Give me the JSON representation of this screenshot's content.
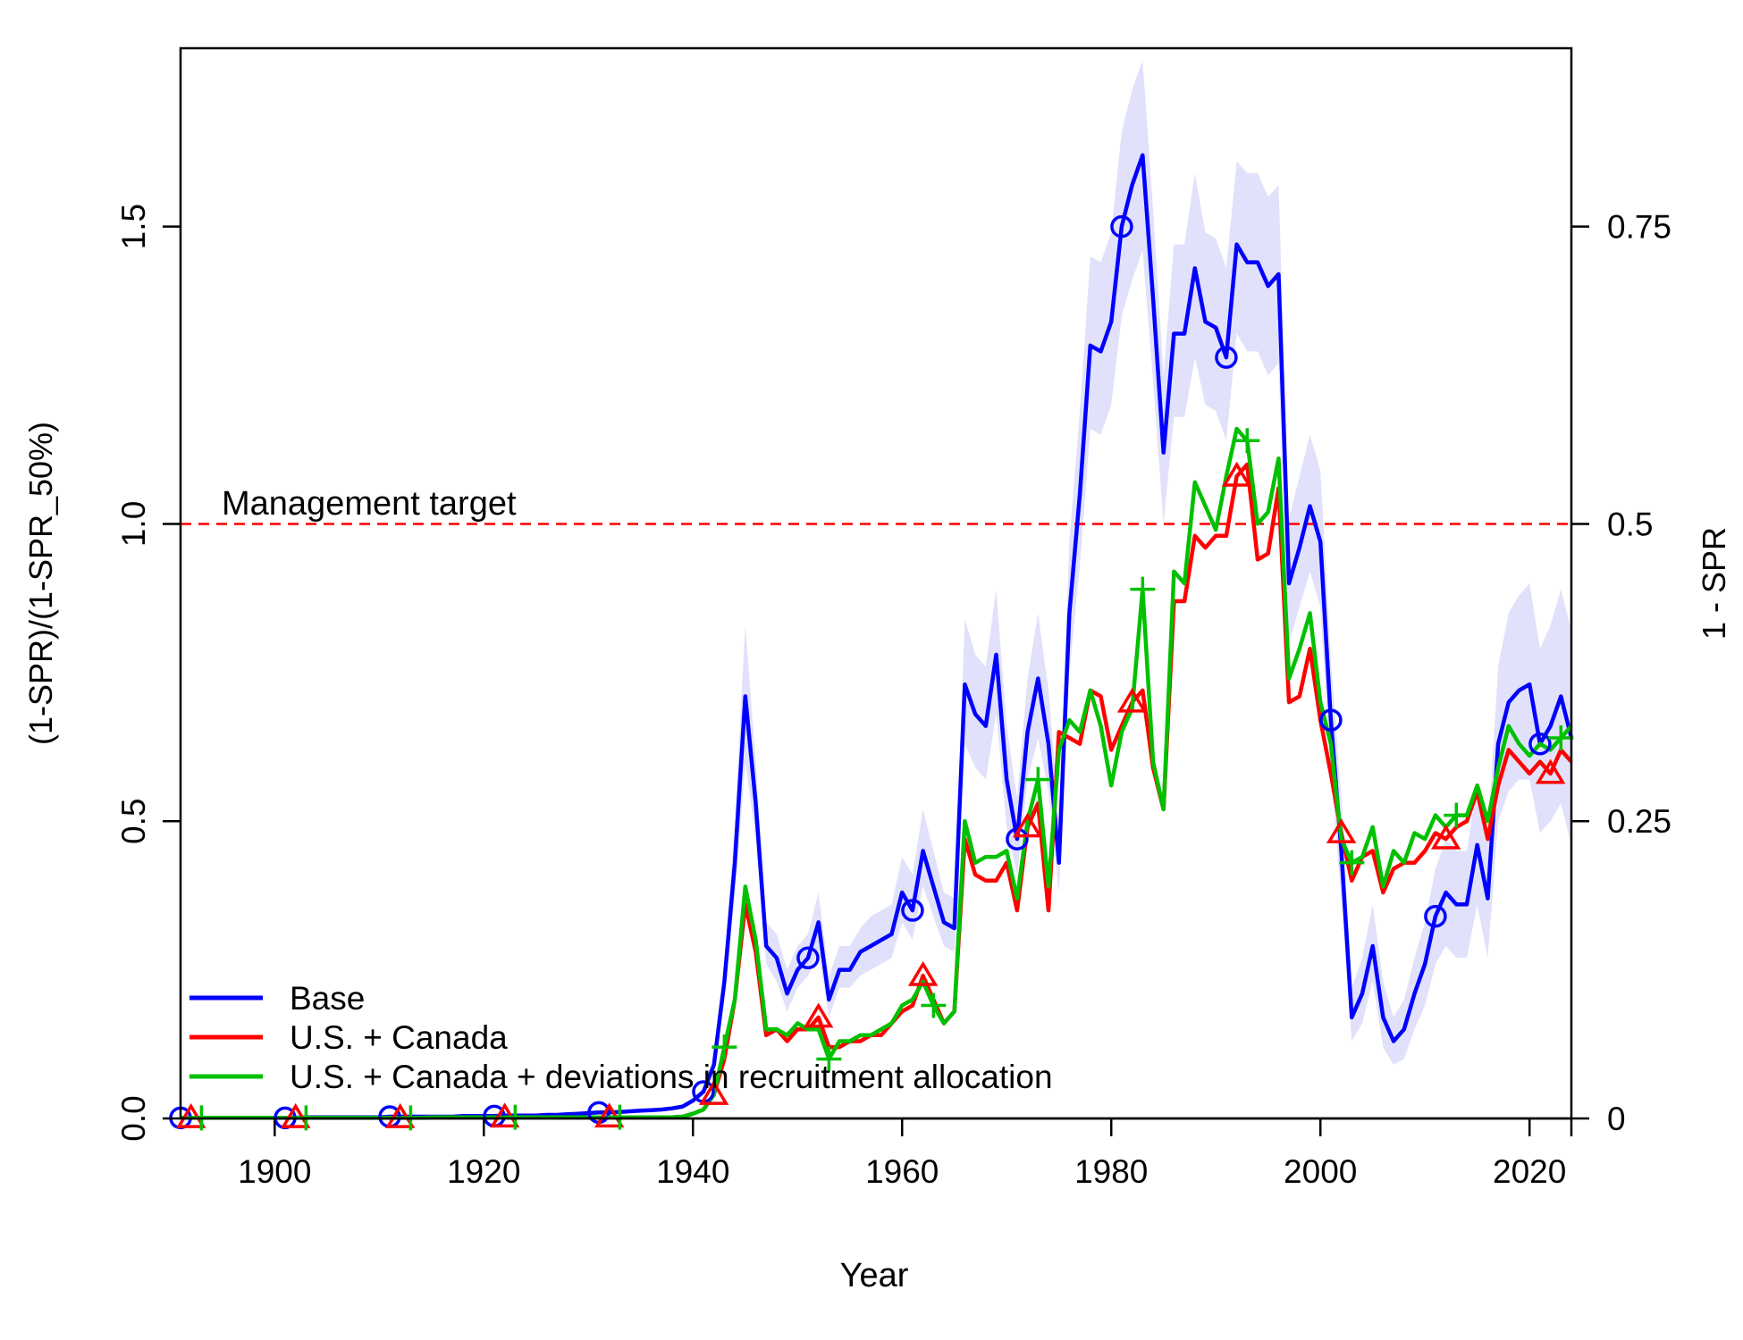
{
  "chart_data": {
    "type": "line",
    "xlabel": "Year",
    "ylabel": "(1-SPR)/(1-SPR_50%)",
    "ylabel_right": "1 - SPR",
    "xlim": [
      1891,
      2024
    ],
    "ylim": [
      0,
      1.8
    ],
    "x_ticks": [
      "1900",
      "1920",
      "1940",
      "1960",
      "1980",
      "2000",
      "2020"
    ],
    "y_ticks": [
      "0.0",
      "0.5",
      "1.0",
      "1.5"
    ],
    "y_ticks_right": [
      "0",
      "0.25",
      "0.5",
      "0.75"
    ],
    "reference_line": {
      "y": 1.0,
      "label": "Management target",
      "color": "#ff0000",
      "style": "dashed"
    },
    "legend_position": "bottom-left",
    "x": [
      1891,
      1892,
      1893,
      1894,
      1895,
      1896,
      1897,
      1898,
      1899,
      1900,
      1901,
      1902,
      1903,
      1904,
      1905,
      1906,
      1907,
      1908,
      1909,
      1910,
      1911,
      1912,
      1913,
      1914,
      1915,
      1916,
      1917,
      1918,
      1919,
      1920,
      1921,
      1922,
      1923,
      1924,
      1925,
      1926,
      1927,
      1928,
      1929,
      1930,
      1931,
      1932,
      1933,
      1934,
      1935,
      1936,
      1937,
      1938,
      1939,
      1940,
      1941,
      1942,
      1943,
      1944,
      1945,
      1946,
      1947,
      1948,
      1949,
      1950,
      1951,
      1952,
      1953,
      1954,
      1955,
      1956,
      1957,
      1958,
      1959,
      1960,
      1961,
      1962,
      1963,
      1964,
      1965,
      1966,
      1967,
      1968,
      1969,
      1970,
      1971,
      1972,
      1973,
      1974,
      1975,
      1976,
      1977,
      1978,
      1979,
      1980,
      1981,
      1982,
      1983,
      1984,
      1985,
      1986,
      1987,
      1988,
      1989,
      1990,
      1991,
      1992,
      1993,
      1994,
      1995,
      1996,
      1997,
      1998,
      1999,
      2000,
      2001,
      2002,
      2003,
      2004,
      2005,
      2006,
      2007,
      2008,
      2009,
      2010,
      2011,
      2012,
      2013,
      2014,
      2015,
      2016,
      2017,
      2018,
      2019,
      2020,
      2021,
      2022,
      2023,
      2024
    ],
    "series": [
      {
        "name": "Base",
        "color": "#0000ff",
        "marker": "circle",
        "marker_years": [
          1891,
          1901,
          1911,
          1921,
          1931,
          1941,
          1951,
          1961,
          1971,
          1981,
          1991,
          2001,
          2011,
          2021
        ],
        "values": [
          0.001,
          0.001,
          0.001,
          0.001,
          0.001,
          0.001,
          0.001,
          0.001,
          0.001,
          0.001,
          0.001,
          0.001,
          0.002,
          0.002,
          0.002,
          0.002,
          0.002,
          0.002,
          0.002,
          0.002,
          0.003,
          0.003,
          0.003,
          0.003,
          0.003,
          0.003,
          0.003,
          0.004,
          0.004,
          0.004,
          0.004,
          0.005,
          0.005,
          0.005,
          0.005,
          0.006,
          0.006,
          0.007,
          0.008,
          0.009,
          0.01,
          0.01,
          0.011,
          0.012,
          0.013,
          0.014,
          0.015,
          0.017,
          0.02,
          0.03,
          0.045,
          0.09,
          0.23,
          0.43,
          0.71,
          0.53,
          0.29,
          0.27,
          0.21,
          0.25,
          0.27,
          0.33,
          0.2,
          0.25,
          0.25,
          0.28,
          0.29,
          0.3,
          0.31,
          0.38,
          0.35,
          0.45,
          0.39,
          0.33,
          0.32,
          0.73,
          0.68,
          0.66,
          0.78,
          0.57,
          0.47,
          0.65,
          0.74,
          0.63,
          0.43,
          0.85,
          1.05,
          1.3,
          1.29,
          1.34,
          1.5,
          1.57,
          1.62,
          1.38,
          1.12,
          1.32,
          1.32,
          1.43,
          1.34,
          1.33,
          1.28,
          1.47,
          1.44,
          1.44,
          1.4,
          1.42,
          0.9,
          0.96,
          1.03,
          0.97,
          0.67,
          0.45,
          0.17,
          0.21,
          0.29,
          0.17,
          0.13,
          0.15,
          0.21,
          0.26,
          0.34,
          0.38,
          0.36,
          0.36,
          0.46,
          0.37,
          0.63,
          0.7,
          0.72,
          0.73,
          0.63,
          0.66,
          0.71,
          0.64
        ],
        "lower": [
          0.001,
          0.001,
          0.001,
          0.001,
          0.001,
          0.001,
          0.001,
          0.001,
          0.001,
          0.001,
          0.001,
          0.001,
          0.002,
          0.002,
          0.002,
          0.002,
          0.002,
          0.002,
          0.002,
          0.002,
          0.003,
          0.003,
          0.003,
          0.003,
          0.003,
          0.003,
          0.003,
          0.004,
          0.004,
          0.004,
          0.004,
          0.005,
          0.005,
          0.005,
          0.005,
          0.006,
          0.006,
          0.007,
          0.008,
          0.009,
          0.01,
          0.01,
          0.011,
          0.012,
          0.013,
          0.014,
          0.015,
          0.017,
          0.02,
          0.03,
          0.045,
          0.08,
          0.2,
          0.37,
          0.6,
          0.47,
          0.26,
          0.23,
          0.18,
          0.22,
          0.24,
          0.28,
          0.17,
          0.22,
          0.22,
          0.24,
          0.25,
          0.26,
          0.27,
          0.33,
          0.3,
          0.39,
          0.34,
          0.29,
          0.28,
          0.63,
          0.59,
          0.57,
          0.68,
          0.49,
          0.41,
          0.57,
          0.64,
          0.55,
          0.38,
          0.75,
          0.93,
          1.16,
          1.15,
          1.2,
          1.35,
          1.41,
          1.46,
          1.24,
          1.0,
          1.18,
          1.18,
          1.28,
          1.2,
          1.19,
          1.14,
          1.32,
          1.29,
          1.29,
          1.25,
          1.27,
          0.8,
          0.86,
          0.92,
          0.86,
          0.58,
          0.37,
          0.13,
          0.16,
          0.23,
          0.12,
          0.09,
          0.1,
          0.15,
          0.19,
          0.26,
          0.29,
          0.27,
          0.27,
          0.36,
          0.27,
          0.5,
          0.55,
          0.57,
          0.57,
          0.48,
          0.5,
          0.53,
          0.46
        ],
        "upper": [
          0.001,
          0.001,
          0.001,
          0.001,
          0.001,
          0.001,
          0.001,
          0.001,
          0.001,
          0.001,
          0.001,
          0.001,
          0.002,
          0.002,
          0.002,
          0.002,
          0.002,
          0.002,
          0.002,
          0.002,
          0.003,
          0.003,
          0.003,
          0.003,
          0.003,
          0.003,
          0.003,
          0.004,
          0.004,
          0.004,
          0.004,
          0.005,
          0.005,
          0.005,
          0.005,
          0.006,
          0.006,
          0.007,
          0.008,
          0.009,
          0.01,
          0.01,
          0.011,
          0.012,
          0.013,
          0.014,
          0.015,
          0.017,
          0.02,
          0.03,
          0.05,
          0.1,
          0.26,
          0.5,
          0.83,
          0.6,
          0.33,
          0.31,
          0.25,
          0.29,
          0.31,
          0.38,
          0.24,
          0.29,
          0.29,
          0.32,
          0.34,
          0.35,
          0.36,
          0.44,
          0.41,
          0.52,
          0.45,
          0.38,
          0.37,
          0.84,
          0.78,
          0.76,
          0.89,
          0.66,
          0.54,
          0.74,
          0.85,
          0.72,
          0.5,
          0.97,
          1.19,
          1.45,
          1.44,
          1.49,
          1.66,
          1.73,
          1.78,
          1.53,
          1.25,
          1.47,
          1.47,
          1.59,
          1.49,
          1.48,
          1.43,
          1.61,
          1.59,
          1.59,
          1.55,
          1.57,
          1.01,
          1.08,
          1.15,
          1.09,
          0.77,
          0.54,
          0.22,
          0.27,
          0.36,
          0.23,
          0.17,
          0.2,
          0.27,
          0.33,
          0.42,
          0.47,
          0.45,
          0.45,
          0.56,
          0.47,
          0.76,
          0.85,
          0.88,
          0.9,
          0.79,
          0.83,
          0.89,
          0.82
        ]
      },
      {
        "name": "U.S. + Canada",
        "color": "#ff0000",
        "marker": "triangle",
        "marker_years": [
          1892,
          1902,
          1912,
          1922,
          1932,
          1942,
          1952,
          1962,
          1972,
          1982,
          1992,
          2002,
          2012,
          2022
        ],
        "values": [
          0.001,
          0.001,
          0.001,
          0.001,
          0.001,
          0.001,
          0.001,
          0.001,
          0.001,
          0.001,
          0.001,
          0.001,
          0.001,
          0.001,
          0.001,
          0.001,
          0.001,
          0.001,
          0.001,
          0.001,
          0.001,
          0.001,
          0.001,
          0.001,
          0.002,
          0.002,
          0.002,
          0.002,
          0.002,
          0.002,
          0.002,
          0.002,
          0.002,
          0.002,
          0.002,
          0.002,
          0.002,
          0.002,
          0.002,
          0.002,
          0.002,
          0.002,
          0.002,
          0.002,
          0.002,
          0.002,
          0.002,
          0.002,
          0.003,
          0.008,
          0.015,
          0.04,
          0.1,
          0.2,
          0.36,
          0.28,
          0.14,
          0.15,
          0.13,
          0.15,
          0.15,
          0.17,
          0.12,
          0.12,
          0.13,
          0.13,
          0.14,
          0.14,
          0.16,
          0.18,
          0.19,
          0.24,
          0.2,
          0.16,
          0.18,
          0.47,
          0.41,
          0.4,
          0.4,
          0.43,
          0.35,
          0.49,
          0.53,
          0.35,
          0.65,
          0.64,
          0.63,
          0.72,
          0.71,
          0.62,
          0.66,
          0.7,
          0.72,
          0.59,
          0.52,
          0.87,
          0.87,
          0.98,
          0.96,
          0.98,
          0.98,
          1.08,
          1.1,
          0.94,
          0.95,
          1.06,
          0.7,
          0.71,
          0.79,
          0.67,
          0.58,
          0.48,
          0.4,
          0.44,
          0.45,
          0.38,
          0.42,
          0.43,
          0.43,
          0.45,
          0.48,
          0.47,
          0.49,
          0.5,
          0.55,
          0.47,
          0.56,
          0.62,
          0.6,
          0.58,
          0.6,
          0.58,
          0.62,
          0.6
        ]
      },
      {
        "name": "U.S. + Canada + deviations in recruitment allocation",
        "color": "#00c000",
        "marker": "plus",
        "marker_years": [
          1893,
          1903,
          1913,
          1923,
          1933,
          1943,
          1953,
          1963,
          1973,
          1983,
          1993,
          2003,
          2013,
          2023
        ],
        "values": [
          0.001,
          0.001,
          0.001,
          0.001,
          0.001,
          0.001,
          0.001,
          0.001,
          0.001,
          0.001,
          0.001,
          0.001,
          0.001,
          0.001,
          0.001,
          0.001,
          0.001,
          0.001,
          0.001,
          0.001,
          0.001,
          0.001,
          0.001,
          0.001,
          0.002,
          0.002,
          0.002,
          0.002,
          0.002,
          0.002,
          0.002,
          0.002,
          0.002,
          0.002,
          0.002,
          0.002,
          0.002,
          0.002,
          0.002,
          0.002,
          0.002,
          0.002,
          0.002,
          0.002,
          0.002,
          0.002,
          0.002,
          0.002,
          0.003,
          0.008,
          0.015,
          0.04,
          0.12,
          0.2,
          0.39,
          0.3,
          0.15,
          0.15,
          0.14,
          0.16,
          0.15,
          0.15,
          0.1,
          0.13,
          0.13,
          0.14,
          0.14,
          0.15,
          0.16,
          0.19,
          0.2,
          0.23,
          0.19,
          0.16,
          0.18,
          0.5,
          0.43,
          0.44,
          0.44,
          0.45,
          0.37,
          0.5,
          0.57,
          0.39,
          0.62,
          0.67,
          0.65,
          0.72,
          0.66,
          0.56,
          0.65,
          0.69,
          0.89,
          0.6,
          0.52,
          0.92,
          0.9,
          1.07,
          1.03,
          0.99,
          1.08,
          1.16,
          1.14,
          1.0,
          1.02,
          1.11,
          0.74,
          0.79,
          0.85,
          0.7,
          0.63,
          0.47,
          0.43,
          0.44,
          0.49,
          0.39,
          0.45,
          0.43,
          0.48,
          0.47,
          0.51,
          0.49,
          0.51,
          0.51,
          0.56,
          0.5,
          0.59,
          0.66,
          0.63,
          0.61,
          0.63,
          0.62,
          0.64,
          0.66
        ]
      }
    ]
  }
}
